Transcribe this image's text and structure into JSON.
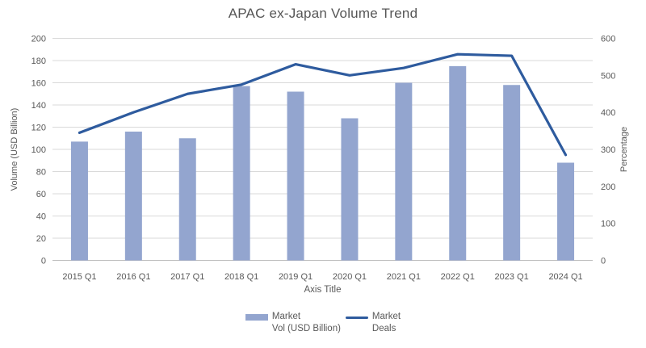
{
  "chart_data": {
    "type": "combo_bar_line",
    "title": "APAC ex-Japan Volume Trend",
    "categories": [
      "2015 Q1",
      "2016 Q1",
      "2017 Q1",
      "2018 Q1",
      "2019 Q1",
      "2020 Q1",
      "2021 Q1",
      "2022 Q1",
      "2023 Q1",
      "2024 Q1"
    ],
    "series": [
      {
        "name": "Market Vol (USD Billion)",
        "type": "bar",
        "axis": "left",
        "color": "#93A5CF",
        "values": [
          107,
          116,
          110,
          157,
          152,
          128,
          160,
          175,
          158,
          88
        ]
      },
      {
        "name": "Market Deals",
        "type": "line",
        "axis": "right",
        "color": "#2E5B9E",
        "values": [
          345,
          400,
          450,
          475,
          530,
          500,
          520,
          557,
          553,
          285
        ]
      }
    ],
    "left_axis": {
      "title": "Volume (USD Billion)",
      "min": 0,
      "max": 200,
      "step": 20,
      "ticks": [
        0,
        20,
        40,
        60,
        80,
        100,
        120,
        140,
        160,
        180,
        200
      ]
    },
    "right_axis": {
      "title": "Percentage",
      "min": 0,
      "max": 600,
      "step": 100,
      "ticks": [
        0,
        100,
        200,
        300,
        400,
        500,
        600
      ]
    },
    "x_axis": {
      "title": "Axis Title"
    },
    "legend": {
      "position": "bottom",
      "entries": [
        {
          "series": "Market Vol (USD Billion)",
          "line1": "Market",
          "line2": "Vol (USD Billion)"
        },
        {
          "series": "Market Deals",
          "line1": "Market",
          "line2": "Deals"
        }
      ]
    },
    "grid": true
  },
  "colors": {
    "gridline": "#D9D9D9",
    "axis_line": "#BFBFBF",
    "tick_text": "#595959",
    "title_text": "#565656",
    "background": "#FFFFFF"
  }
}
